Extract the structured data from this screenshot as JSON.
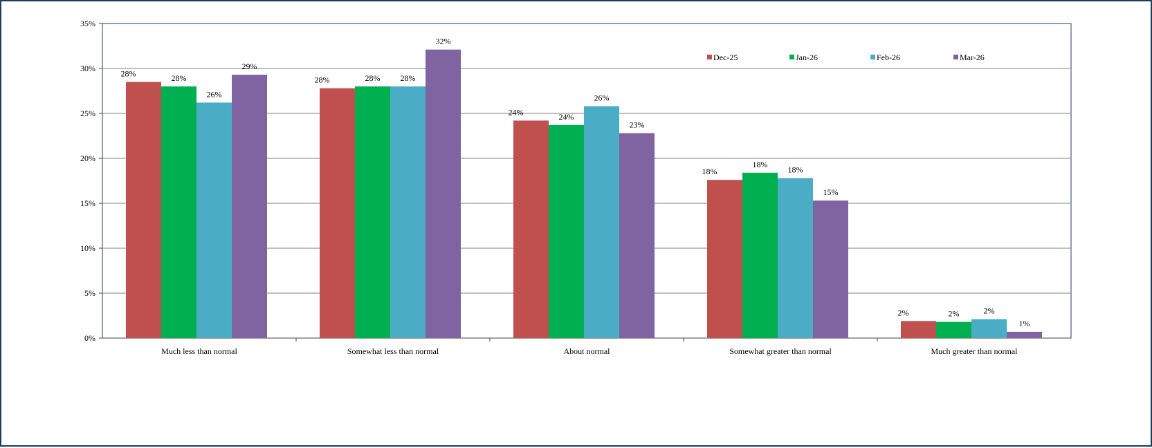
{
  "chart_data": {
    "type": "bar",
    "categories": [
      "Much less than normal",
      "Somewhat less than normal",
      "About normal",
      "Somewhat greater than normal",
      "Much greater than normal"
    ],
    "series": [
      {
        "name": "Dec-25",
        "color": "#c0504d",
        "values": [
          28.5,
          27.8,
          24.2,
          17.6,
          1.9
        ],
        "labels": [
          "28%",
          "28%",
          "24%",
          "18%",
          "2%"
        ]
      },
      {
        "name": "Jan-26",
        "color": "#00b050",
        "values": [
          28.0,
          28.0,
          23.7,
          18.4,
          1.8
        ],
        "labels": [
          "28%",
          "28%",
          "24%",
          "18%",
          "2%"
        ]
      },
      {
        "name": "Feb-26",
        "color": "#4bacc6",
        "values": [
          26.2,
          28.0,
          25.8,
          17.8,
          2.1
        ],
        "labels": [
          "26%",
          "28%",
          "26%",
          "18%",
          "2%"
        ]
      },
      {
        "name": "Mar-26",
        "color": "#8064a2",
        "values": [
          29.3,
          32.1,
          22.8,
          15.3,
          0.7
        ],
        "labels": [
          "29%",
          "32%",
          "23%",
          "15%",
          "1%"
        ]
      }
    ],
    "ylim": [
      0,
      35
    ],
    "yticks": [
      "0%",
      "5%",
      "10%",
      "15%",
      "20%",
      "25%",
      "30%",
      "35%"
    ],
    "grid": true,
    "legend_position": "top-right"
  }
}
